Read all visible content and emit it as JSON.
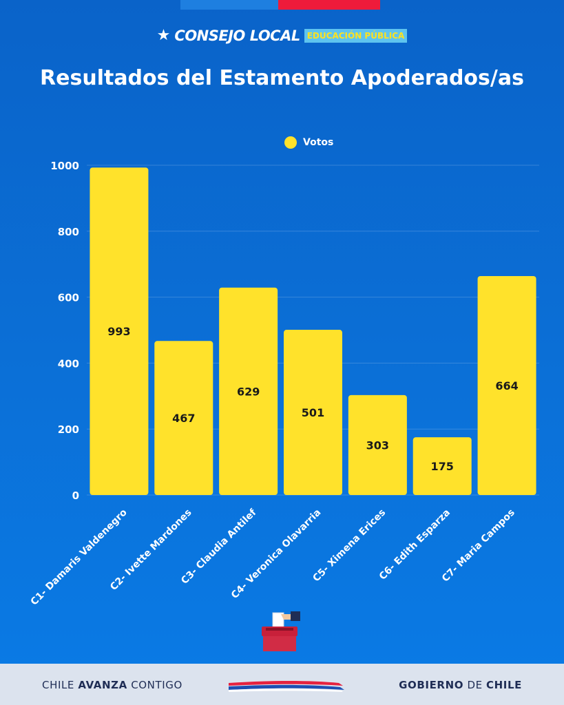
{
  "brand": {
    "name": "CONSEJO LOCAL",
    "tag": "EDUCACIÓN PÚBLICA"
  },
  "colors": {
    "bar": "#ffe22b",
    "background": "#0b6fd6",
    "footer": "#dce3ee",
    "flag_red": "#ee1b3b",
    "flag_blue": "#1e7fe0"
  },
  "chart_data": {
    "type": "bar",
    "title": "Resultados del Estamento Apoderados/as",
    "categories": [
      "C1- Damaris Valdenegro",
      "C2- Ivette Mardones",
      "C3- Claudia Antilef",
      "C4- Veronica Olavarria",
      "C5- Ximena Erices",
      "C6- Edith Esparza",
      "C7- Maria Campos"
    ],
    "series": [
      {
        "name": "Votos",
        "values": [
          993,
          467,
          629,
          501,
          303,
          175,
          664
        ]
      }
    ],
    "ylim": [
      0,
      1000
    ],
    "yticks": [
      0,
      200,
      400,
      600,
      800,
      1000
    ],
    "grid": true,
    "legend": "top-center"
  },
  "footer": {
    "left_pre": "CHILE ",
    "left_bold": "AVANZA",
    "left_post": " CONTIGO",
    "right_b1": "GOBIERNO",
    "right_mid": " DE ",
    "right_b2": "CHILE"
  }
}
